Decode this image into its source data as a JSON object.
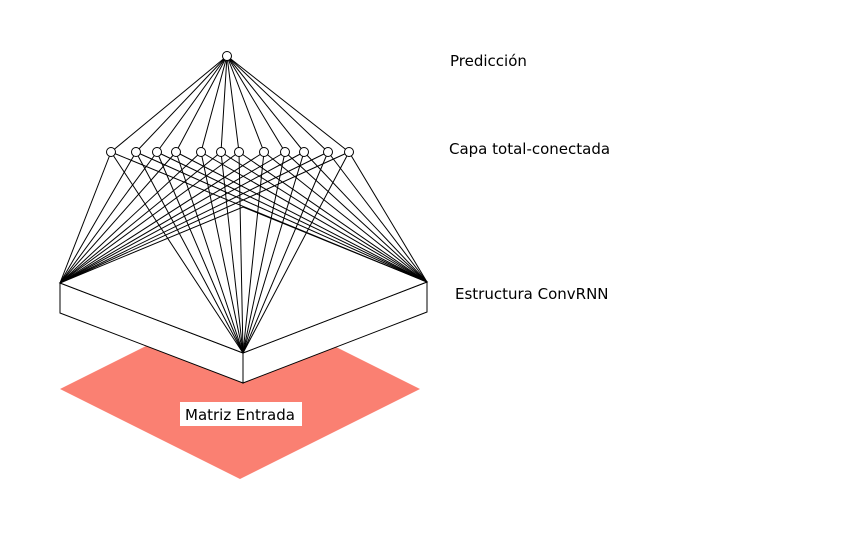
{
  "labels": {
    "prediction": "Predicción",
    "dense_layer": "Capa total-conectada",
    "convrnn": "Estructura ConvRNN",
    "input_matrix": "Matriz Entrada"
  },
  "structure": {
    "output_nodes": 1,
    "dense_nodes": 12,
    "conv_block_corners_connected": 3
  },
  "colors": {
    "input_matrix_fill": "#fa8072",
    "input_label_bg": "#ffffff",
    "line": "#000000",
    "block_face": "#ffffff"
  }
}
